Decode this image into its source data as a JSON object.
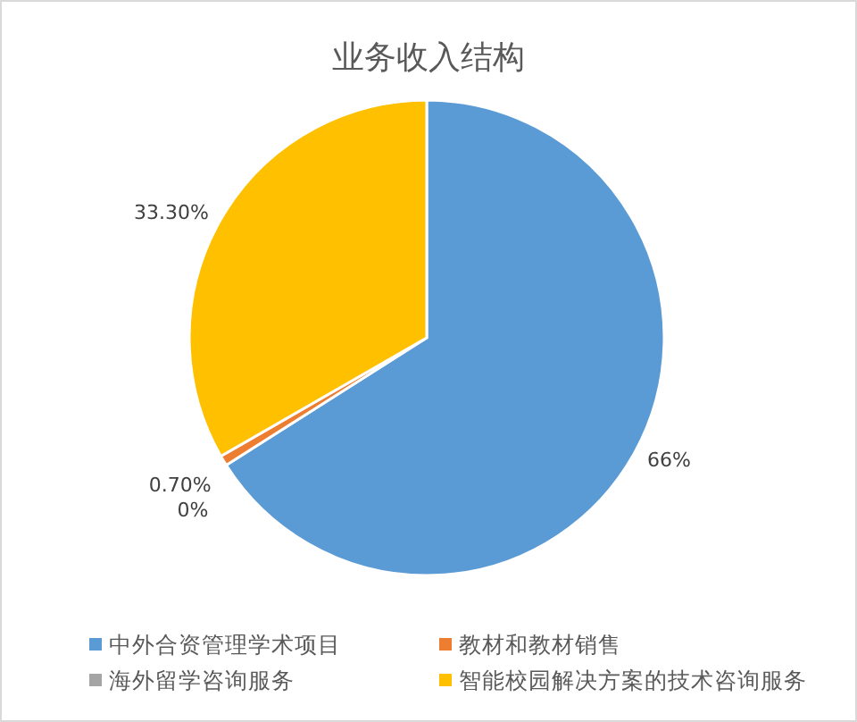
{
  "chart_data": {
    "type": "pie",
    "title": "业务收入结构",
    "categories": [
      "中外合资管理学术项目",
      "教材和教材销售",
      "海外留学咨询服务",
      "智能校园解决方案的技术咨询服务"
    ],
    "values": [
      66,
      0.7,
      0,
      33.3
    ],
    "colors": [
      "#5b9bd5",
      "#ed7d31",
      "#a5a5a5",
      "#ffc000"
    ],
    "value_labels": [
      "66%",
      "0.70%",
      "0%",
      "33.30%"
    ],
    "legend": "bottom"
  }
}
